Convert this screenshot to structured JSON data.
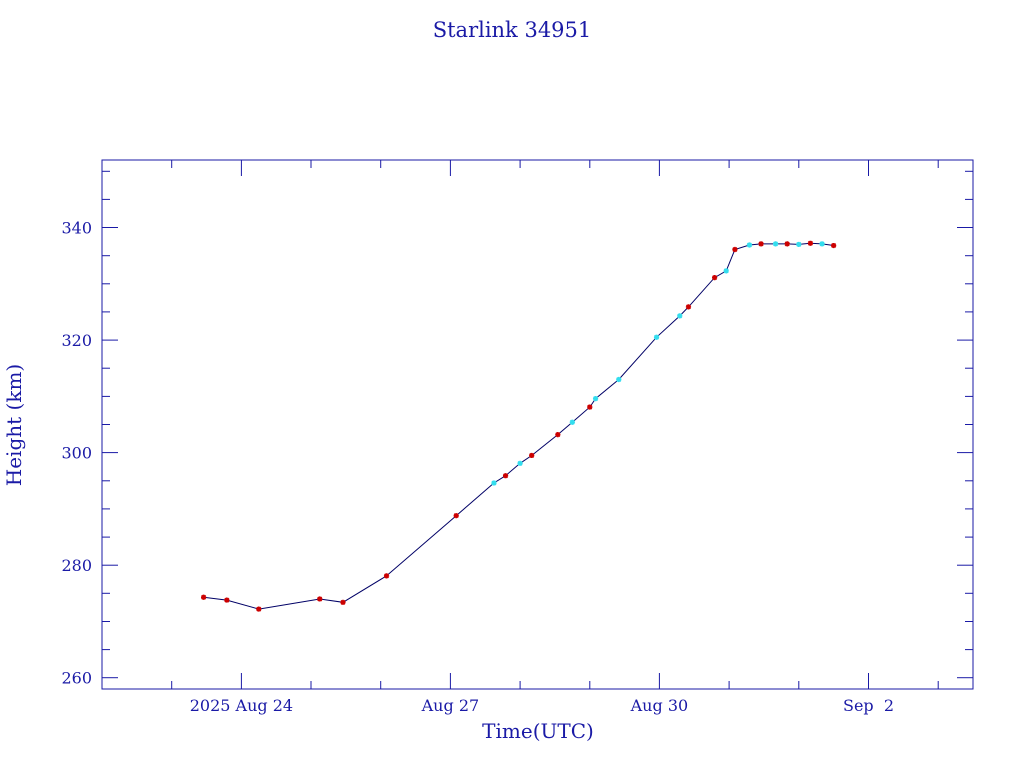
{
  "chart_data": {
    "type": "line",
    "title": "Starlink 34951",
    "xlabel": "Time(UTC)",
    "ylabel": "Height (km)",
    "x_tick_labels": [
      "2025 Aug 24",
      "Aug 27",
      "Aug 30",
      "Sep  2"
    ],
    "x_tick_dates": [
      "2025-08-24",
      "2025-08-27",
      "2025-08-30",
      "2025-09-02"
    ],
    "xlim": [
      "2025-08-22T00:00",
      "2025-09-03T12:00"
    ],
    "y_ticks": [
      260,
      280,
      300,
      320,
      340
    ],
    "ylim": [
      258,
      352
    ],
    "grid": false,
    "colors": {
      "frame": "#1a1aa6",
      "line": "#000066",
      "marker_red": "#cc0000",
      "marker_cyan": "#33ddee"
    },
    "series": [
      {
        "points": [
          {
            "x": "2025-08-23T11:00",
            "y": 274.3,
            "m": "red"
          },
          {
            "x": "2025-08-23T19:00",
            "y": 273.8,
            "m": "red"
          },
          {
            "x": "2025-08-24T06:00",
            "y": 272.2,
            "m": "red"
          },
          {
            "x": "2025-08-25T03:00",
            "y": 274.0,
            "m": "red"
          },
          {
            "x": "2025-08-25T11:00",
            "y": 273.4,
            "m": "red"
          },
          {
            "x": "2025-08-26T02:00",
            "y": 278.1,
            "m": "red"
          },
          {
            "x": "2025-08-27T02:00",
            "y": 288.8,
            "m": "red"
          },
          {
            "x": "2025-08-27T15:00",
            "y": 294.6,
            "m": "cyan"
          },
          {
            "x": "2025-08-27T19:00",
            "y": 295.9,
            "m": "red"
          },
          {
            "x": "2025-08-28T00:00",
            "y": 298.1,
            "m": "cyan"
          },
          {
            "x": "2025-08-28T04:00",
            "y": 299.5,
            "m": "red"
          },
          {
            "x": "2025-08-28T13:00",
            "y": 303.2,
            "m": "red"
          },
          {
            "x": "2025-08-28T18:00",
            "y": 305.4,
            "m": "cyan"
          },
          {
            "x": "2025-08-29T00:00",
            "y": 308.1,
            "m": "red"
          },
          {
            "x": "2025-08-29T02:00",
            "y": 309.6,
            "m": "cyan"
          },
          {
            "x": "2025-08-29T10:00",
            "y": 313.0,
            "m": "cyan"
          },
          {
            "x": "2025-08-29T23:00",
            "y": 320.5,
            "m": "cyan"
          },
          {
            "x": "2025-08-30T07:00",
            "y": 324.3,
            "m": "cyan"
          },
          {
            "x": "2025-08-30T10:00",
            "y": 325.9,
            "m": "red"
          },
          {
            "x": "2025-08-30T19:00",
            "y": 331.1,
            "m": "red"
          },
          {
            "x": "2025-08-30T23:00",
            "y": 332.3,
            "m": "cyan"
          },
          {
            "x": "2025-08-31T02:00",
            "y": 336.1,
            "m": "red"
          },
          {
            "x": "2025-08-31T07:00",
            "y": 336.9,
            "m": "cyan"
          },
          {
            "x": "2025-08-31T11:00",
            "y": 337.1,
            "m": "red"
          },
          {
            "x": "2025-08-31T16:00",
            "y": 337.1,
            "m": "cyan"
          },
          {
            "x": "2025-08-31T20:00",
            "y": 337.1,
            "m": "red"
          },
          {
            "x": "2025-09-01T00:00",
            "y": 337.0,
            "m": "cyan"
          },
          {
            "x": "2025-09-01T04:00",
            "y": 337.2,
            "m": "red"
          },
          {
            "x": "2025-09-01T08:00",
            "y": 337.1,
            "m": "cyan"
          },
          {
            "x": "2025-09-01T12:00",
            "y": 336.8,
            "m": "red"
          }
        ]
      }
    ]
  }
}
